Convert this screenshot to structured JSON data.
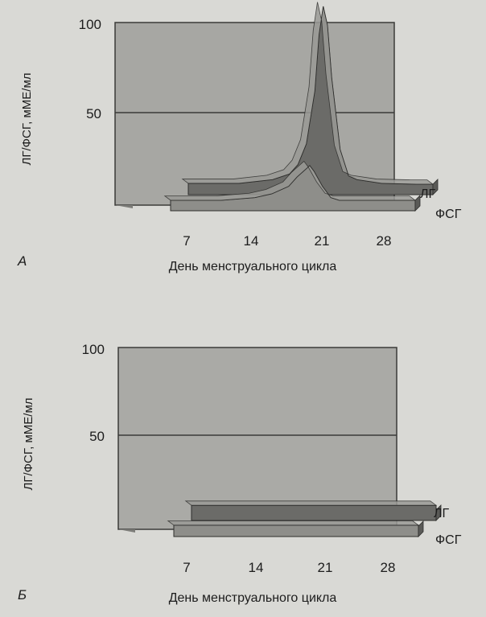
{
  "chart_data": [
    {
      "panel": "А",
      "type": "area",
      "ylabel": "ЛГ/ФСГ, мМЕ/мл",
      "xlabel": "День менструального цикла",
      "yticks": [
        "50",
        "100"
      ],
      "xticks": [
        "7",
        "14",
        "21",
        "28"
      ],
      "ylim": [
        0,
        100
      ],
      "xlim": [
        1,
        30
      ],
      "grid": "horizontal line at 50",
      "series": [
        {
          "name": "ЛГ",
          "x": [
            1,
            7,
            11,
            13,
            14,
            15,
            16,
            16.5,
            17,
            17.5,
            18,
            19,
            20,
            21,
            24,
            28,
            30
          ],
          "values": [
            6,
            6,
            8,
            11,
            16,
            27,
            55,
            85,
            100,
            90,
            62,
            24,
            10,
            8,
            6,
            5,
            5
          ]
        },
        {
          "name": "ФСГ",
          "x": [
            1,
            7,
            11,
            13,
            15,
            16,
            17,
            17.5,
            18,
            19,
            20,
            21,
            24,
            28,
            30
          ],
          "values": [
            5,
            5,
            7,
            9,
            13,
            18,
            22,
            24,
            21,
            13,
            7,
            5,
            4,
            4,
            4
          ]
        }
      ],
      "colors": {
        "lg": "#6b6b68",
        "fsh": "#8e8e8a",
        "background": "#a7a7a3"
      }
    },
    {
      "panel": "Б",
      "type": "area",
      "ylabel": "ЛГ/ФСГ, мМЕ/мл",
      "xlabel": "День менструального цикла",
      "yticks": [
        "50",
        "100"
      ],
      "xticks": [
        "7",
        "14",
        "21",
        "28"
      ],
      "ylim": [
        0,
        100
      ],
      "xlim": [
        1,
        30
      ],
      "grid": "horizontal line at 50",
      "series": [
        {
          "name": "ЛГ",
          "x": [
            1,
            30
          ],
          "values": [
            8,
            8
          ]
        },
        {
          "name": "ФСГ",
          "x": [
            1,
            30
          ],
          "values": [
            6,
            6
          ]
        }
      ],
      "colors": {
        "lg": "#6b6b68",
        "fsh": "#8e8e8a",
        "background": "#aaaaa6"
      }
    }
  ]
}
